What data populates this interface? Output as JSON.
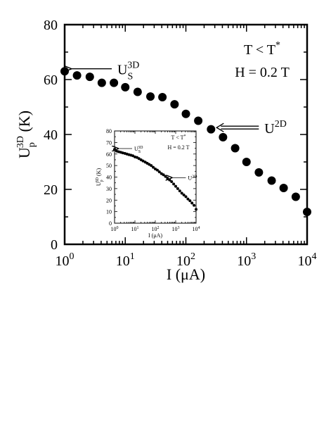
{
  "chart_data": [
    {
      "id": "main",
      "type": "scatter",
      "x_scale": "log",
      "xlim": [
        1,
        10000
      ],
      "ylim": [
        0,
        80
      ],
      "x_ticks": [
        {
          "value": 1,
          "base": "10",
          "exp": "0"
        },
        {
          "value": 10,
          "base": "10",
          "exp": "1"
        },
        {
          "value": 100,
          "base": "10",
          "exp": "2"
        },
        {
          "value": 1000,
          "base": "10",
          "exp": "3"
        },
        {
          "value": 10000,
          "base": "10",
          "exp": "4"
        }
      ],
      "y_ticks": [
        {
          "value": 0,
          "label": "0"
        },
        {
          "value": 20,
          "label": "20"
        },
        {
          "value": 40,
          "label": "40"
        },
        {
          "value": 60,
          "label": "60"
        },
        {
          "value": 80,
          "label": "80"
        }
      ],
      "xlabel": "I (μA)",
      "ylabel": {
        "base": "U",
        "sub": "p",
        "sup": "3D",
        "unit": "(K)"
      },
      "annotations": {
        "condition": {
          "base": "T < T",
          "sup": "*"
        },
        "field": "H = 0.2 T",
        "us3d": {
          "base": "U",
          "sub": "S",
          "sup": "3D"
        },
        "u2d": {
          "base": "U",
          "sup": "2D"
        }
      },
      "x": [
        1.0,
        1.6,
        2.6,
        4.1,
        6.5,
        10,
        16,
        26,
        41,
        65,
        100,
        160,
        260,
        410,
        650,
        1000,
        1600,
        2600,
        4100,
        6500,
        10000
      ],
      "y": [
        63,
        61.5,
        61,
        58.8,
        58.8,
        57.2,
        55.5,
        53.8,
        53.6,
        51,
        47.5,
        45,
        41.9,
        39,
        35,
        30,
        26.2,
        23.2,
        20.5,
        17.3,
        11.8
      ]
    },
    {
      "id": "inset",
      "type": "scatter",
      "x_scale": "log",
      "xlim": [
        1,
        10000
      ],
      "ylim": [
        0,
        80
      ],
      "x_ticks": [
        {
          "value": 1,
          "base": "10",
          "exp": "0"
        },
        {
          "value": 10,
          "base": "10",
          "exp": "1"
        },
        {
          "value": 100,
          "base": "10",
          "exp": "2"
        },
        {
          "value": 1000,
          "base": "10",
          "exp": "3"
        },
        {
          "value": 10000,
          "base": "10",
          "exp": "4"
        }
      ],
      "y_ticks": [
        {
          "value": 0,
          "label": "0"
        },
        {
          "value": 10,
          "label": "10"
        },
        {
          "value": 20,
          "label": "20"
        },
        {
          "value": 30,
          "label": "30"
        },
        {
          "value": 40,
          "label": "40"
        },
        {
          "value": 50,
          "label": "50"
        },
        {
          "value": 60,
          "label": "60"
        },
        {
          "value": 70,
          "label": "70"
        },
        {
          "value": 80,
          "label": "80"
        }
      ],
      "xlabel": "I (μA)",
      "ylabel": {
        "base": "U",
        "sub": "p",
        "sup": "3D",
        "unit": "(K)"
      },
      "annotations": {
        "condition": {
          "base": "T < T",
          "sup": "*"
        },
        "field": "H = 0.2 T",
        "us3d": {
          "base": "U",
          "sub": "S",
          "sup": "3D"
        },
        "u2d": {
          "base": "U",
          "sup": "2D"
        }
      },
      "x": [
        1.0,
        1.26,
        1.58,
        2.0,
        2.5,
        3.2,
        4.0,
        5.0,
        6.3,
        7.9,
        10,
        12.6,
        15.8,
        20,
        25,
        32,
        40,
        50,
        63,
        79,
        100,
        126,
        158,
        200,
        251,
        316,
        398,
        501,
        631,
        794,
        1000,
        1259,
        1585,
        1995,
        2512,
        3162,
        3981,
        5012,
        6310,
        7943,
        10000
      ],
      "y": [
        64,
        62.5,
        62,
        61.5,
        61,
        60.5,
        60,
        59.5,
        59,
        58.5,
        57.5,
        57,
        56,
        55,
        54,
        53,
        52,
        51,
        50,
        48.5,
        47,
        46,
        44.5,
        43,
        42,
        40.5,
        39,
        37.5,
        36,
        34,
        32,
        30,
        28,
        26,
        24.5,
        23,
        21,
        19.5,
        17.5,
        15.5,
        12
      ]
    }
  ]
}
